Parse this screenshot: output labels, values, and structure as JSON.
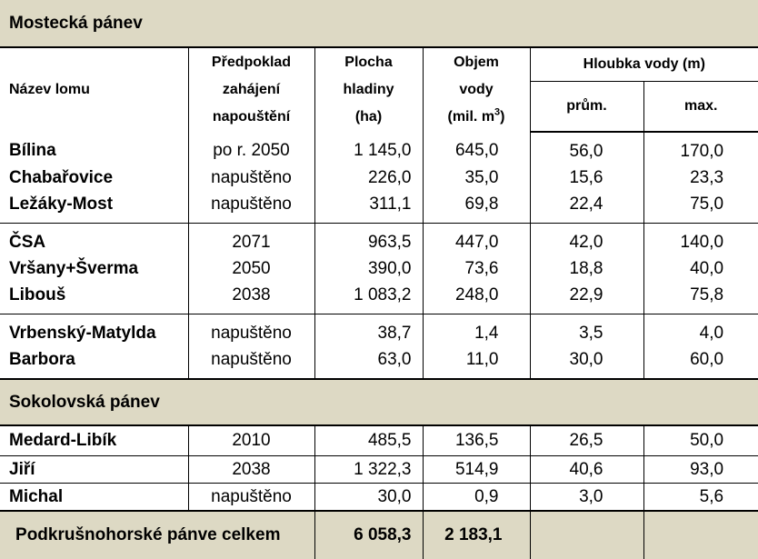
{
  "sections": {
    "mostecka": "Mostecká pánev",
    "sokolovska": "Sokolovská pánev"
  },
  "headers": {
    "name": "Název lomu",
    "start_line1": "Předpoklad",
    "start_line2": "zahájení",
    "start_line3": "napouštění",
    "area_line1": "Plocha",
    "area_line2": "hladiny",
    "area_line3": "(ha)",
    "volume_line1": "Objem",
    "volume_line2": "vody",
    "volume_line3": "(mil. m",
    "volume_sup": "3",
    "volume_close": ")",
    "depth": "Hloubka vody (m)",
    "depth_avg": "prům.",
    "depth_max": "max."
  },
  "rows": [
    [
      "Bílina",
      "po r. 2050",
      "1 145,0",
      "645,0",
      "56,0",
      "170,0"
    ],
    [
      "Chabařovice",
      "napuštěno",
      "226,0",
      "35,0",
      "15,6",
      "23,3"
    ],
    [
      "Ležáky-Most",
      "napuštěno",
      "311,1",
      "69,8",
      "22,4",
      "75,0"
    ],
    [
      "ČSA",
      "2071",
      "963,5",
      "447,0",
      "42,0",
      "140,0"
    ],
    [
      "Vršany+Šverma",
      "2050",
      "390,0",
      "73,6",
      "18,8",
      "40,0"
    ],
    [
      "Libouš",
      "2038",
      "1 083,2",
      "248,0",
      "22,9",
      "75,8"
    ],
    [
      "Vrbenský-Matylda",
      "napuštěno",
      "38,7",
      "1,4",
      "3,5",
      "4,0"
    ],
    [
      "Barbora",
      "napuštěno",
      "63,0",
      "11,0",
      "30,0",
      "60,0"
    ],
    [
      "Medard-Libík",
      "2010",
      "485,5",
      "136,5",
      "26,5",
      "50,0"
    ],
    [
      "Jiří",
      "2038",
      "1 322,3",
      "514,9",
      "40,6",
      "93,0"
    ],
    [
      "Michal",
      "napuštěno",
      "30,0",
      "0,9",
      "3,0",
      "5,6"
    ]
  ],
  "total": {
    "label": "Podkrušnohorské pánve celkem",
    "area": "6 058,3",
    "volume": "2 183,1"
  }
}
